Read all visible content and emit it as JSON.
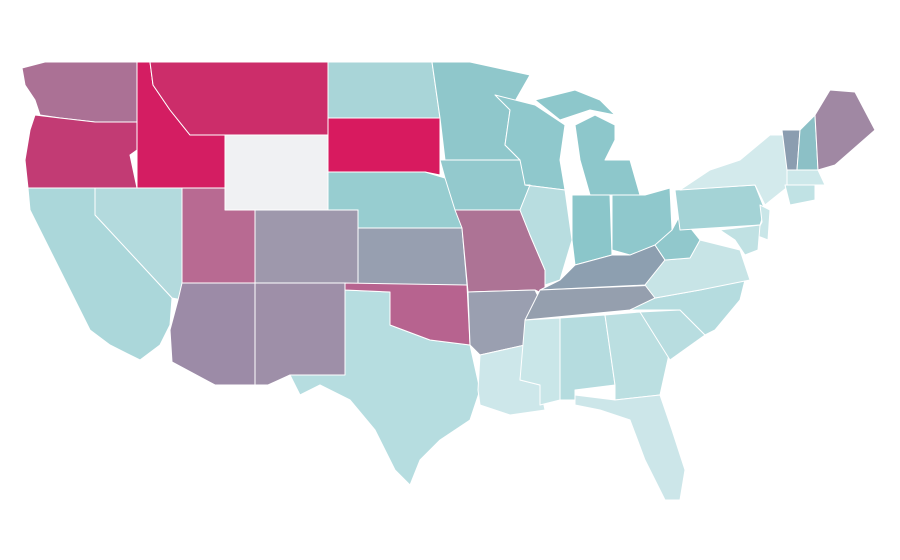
{
  "map": {
    "type": "choropleth",
    "stroke": "#ffffff",
    "background": "#ffffff",
    "regions": [
      {
        "color": "#ab7195"
      },
      {
        "color": "#c23b74"
      },
      {
        "color": "#d41d62"
      },
      {
        "color": "#cc2d6a"
      },
      {
        "color": "#f0f1f3"
      },
      {
        "color": "#a9d5d8"
      },
      {
        "color": "#d81a5f"
      },
      {
        "color": "#97cdd0"
      },
      {
        "color": "#9e98ac"
      },
      {
        "color": "#979fb0"
      },
      {
        "color": "#b86a92"
      },
      {
        "color": "#b3dadd"
      },
      {
        "color": "#abd7da"
      },
      {
        "color": "#9c8ba7"
      },
      {
        "color": "#9e8fa8"
      },
      {
        "color": "#b6dde0"
      },
      {
        "color": "#b7638f"
      },
      {
        "color": "#8fc7cb"
      },
      {
        "color": "#93c9cd"
      },
      {
        "color": "#ad7395"
      },
      {
        "color": "#9a9fb0"
      },
      {
        "color": "#cde7ea"
      },
      {
        "color": "#8fc8cc"
      },
      {
        "color": "#b8dde0"
      },
      {
        "color": "#8dc7cb"
      },
      {
        "color": "#8dc7cb"
      },
      {
        "color": "#8bc6ca"
      },
      {
        "color": "#8fc8cc"
      },
      {
        "color": "#8d9fb0"
      },
      {
        "color": "#959fae"
      },
      {
        "color": "#c9e6e8"
      },
      {
        "color": "#b5dcdf"
      },
      {
        "color": "#bbdfe1"
      },
      {
        "color": "#cce6e9"
      },
      {
        "color": "#b8dde0"
      },
      {
        "color": "#b5dcdf"
      },
      {
        "color": "#c7e4e6"
      },
      {
        "color": "#91c8cc"
      },
      {
        "color": "#a4d3d6"
      },
      {
        "color": "#d3eaec"
      },
      {
        "color": "#c9e6e8"
      },
      {
        "color": "#c0e1e3"
      },
      {
        "color": "#8b9db0"
      },
      {
        "color": "#8cc0c6"
      },
      {
        "color": "#a088a3"
      },
      {
        "color": "#cde8ea"
      },
      {
        "color": "#c0e2e4"
      }
    ]
  }
}
